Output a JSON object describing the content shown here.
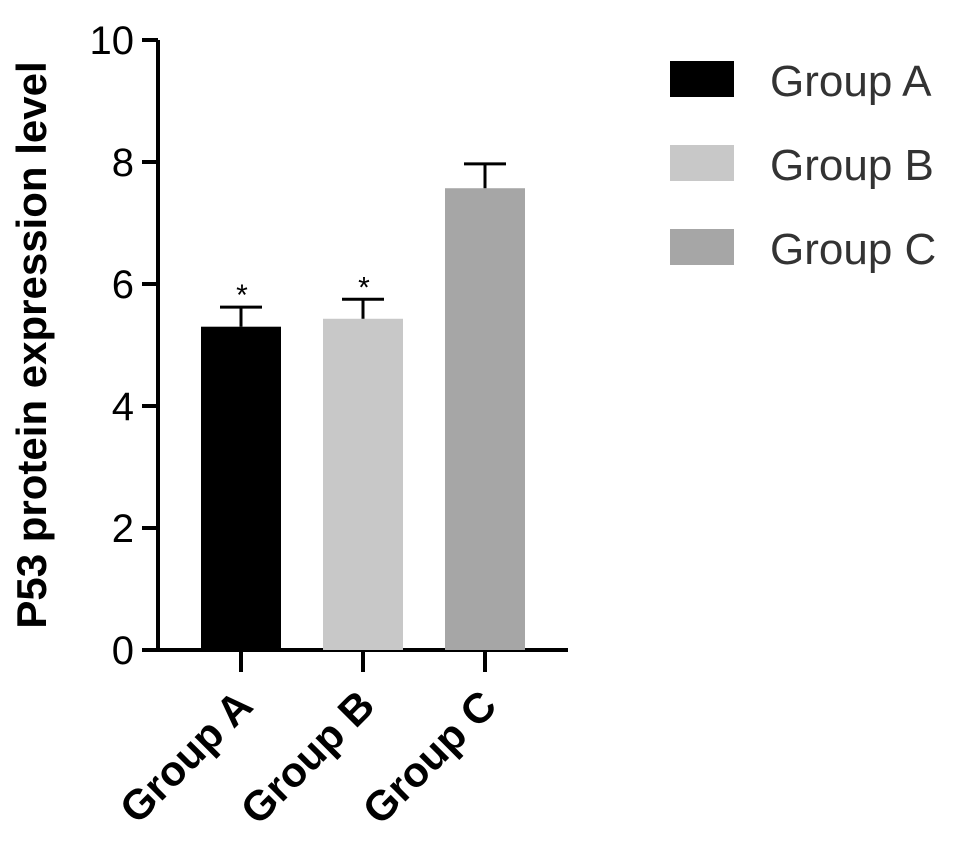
{
  "chart_data": {
    "type": "bar",
    "title": "",
    "xlabel": "",
    "ylabel": "P53 protein expression level",
    "categories": [
      "Group A",
      "Group B",
      "Group C"
    ],
    "values": [
      5.3,
      5.43,
      7.57
    ],
    "errors": [
      0.32,
      0.32,
      0.4
    ],
    "significance": [
      "*",
      "*",
      ""
    ],
    "colors": [
      "#000000",
      "#c8c8c8",
      "#a6a6a6"
    ],
    "ylim": [
      0,
      10
    ],
    "yticks": [
      "0",
      "2",
      "4",
      "6",
      "8",
      "10"
    ],
    "grid": false,
    "legend": {
      "placement": "top-right",
      "entries": [
        "Group A",
        "Group B",
        "Group C"
      ]
    }
  }
}
